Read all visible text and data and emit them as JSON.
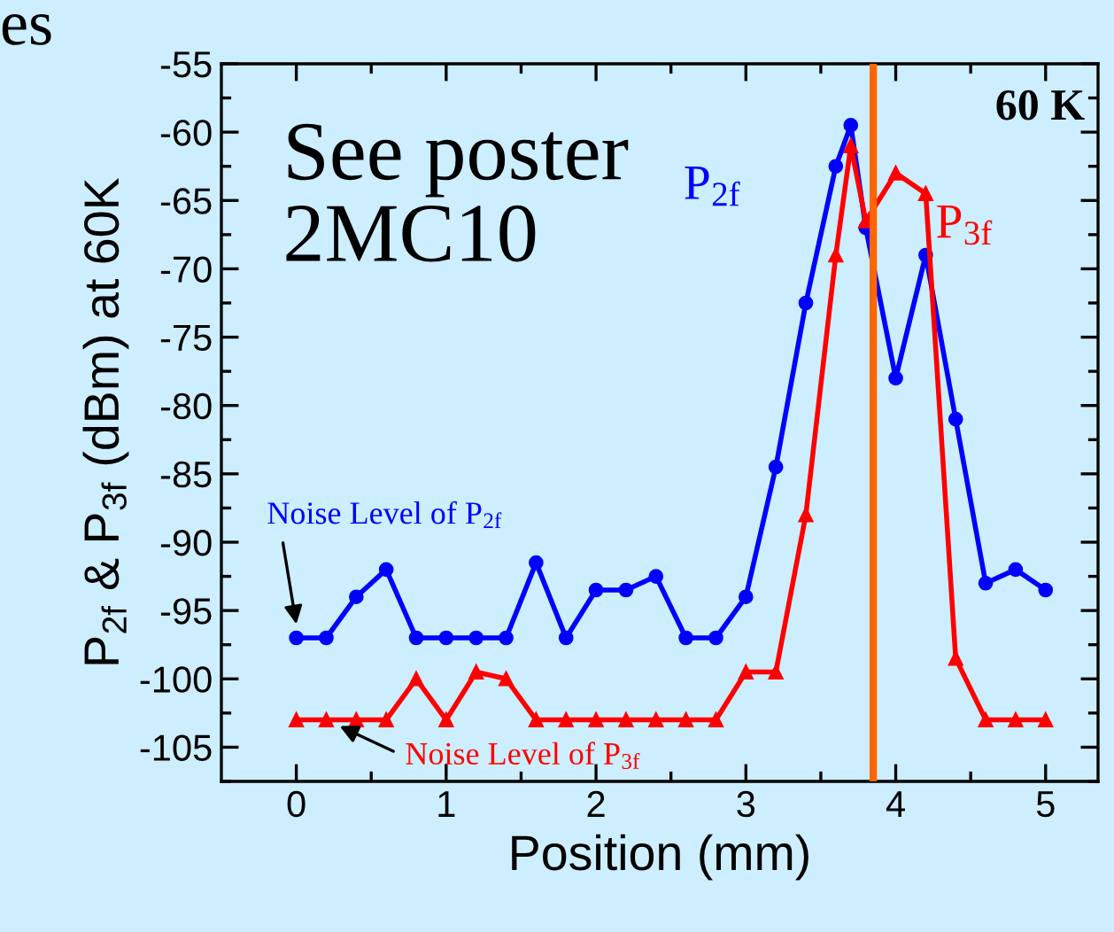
{
  "chart_data": {
    "type": "line",
    "xlabel": "Position (mm)",
    "ylabel": "P$_{2f}$ & P$_{3f}$ (dBm) at 60K",
    "xlim": [
      -0.5,
      5.35
    ],
    "ylim": [
      -107.5,
      -55
    ],
    "xticks": [
      0,
      1,
      2,
      3,
      4,
      5
    ],
    "yticks": [
      -105,
      -100,
      -95,
      -90,
      -85,
      -80,
      -75,
      -70,
      -65,
      -60,
      -55
    ],
    "grid": false,
    "legend": false,
    "series": [
      {
        "name": "P$_{2f}$",
        "color": "#0000ff",
        "marker": "circle",
        "x": [
          0,
          0.2,
          0.4,
          0.6,
          0.8,
          1.0,
          1.2,
          1.4,
          1.6,
          1.8,
          2.0,
          2.2,
          2.4,
          2.6,
          2.8,
          3.0,
          3.2,
          3.4,
          3.6,
          3.7,
          3.8,
          4.0,
          4.2,
          4.4,
          4.6,
          4.8,
          5.0
        ],
        "values": [
          -97,
          -97,
          -94,
          -92,
          -97,
          -97,
          -97,
          -97,
          -91.5,
          -97,
          -93.5,
          -93.5,
          -92.5,
          -97,
          -97,
          -94,
          -84.5,
          -72.5,
          -62.5,
          -59.5,
          -67,
          -78,
          -69,
          -81,
          -93,
          -92,
          -93.5
        ]
      },
      {
        "name": "P$_{3f}$",
        "color": "#ff0000",
        "marker": "triangle",
        "x": [
          0,
          0.2,
          0.4,
          0.6,
          0.8,
          1.0,
          1.2,
          1.4,
          1.6,
          1.8,
          2.0,
          2.2,
          2.4,
          2.6,
          2.8,
          3.0,
          3.2,
          3.4,
          3.6,
          3.7,
          3.8,
          4.0,
          4.2,
          4.4,
          4.6,
          4.8,
          5.0
        ],
        "values": [
          -103,
          -103,
          -103,
          -103,
          -100,
          -103,
          -99.5,
          -100,
          -103,
          -103,
          -103,
          -103,
          -103,
          -103,
          -103,
          -99.5,
          -99.5,
          -88,
          -69,
          -61,
          -66.5,
          -63,
          -64.5,
          -98.5,
          -103,
          -103,
          -103
        ]
      }
    ],
    "ref_lines": [
      {
        "axis": "x",
        "value": 3.85,
        "color": "#ff6600"
      }
    ],
    "annotations": [
      "es",
      "See poster\n2MC10",
      "60 K",
      {
        "text": "Noise Level of P$_{2f}$",
        "x": 0,
        "y": -96
      },
      {
        "text": "Noise Level of P$_{3f}$",
        "x": 0.2,
        "y": -103
      }
    ]
  }
}
